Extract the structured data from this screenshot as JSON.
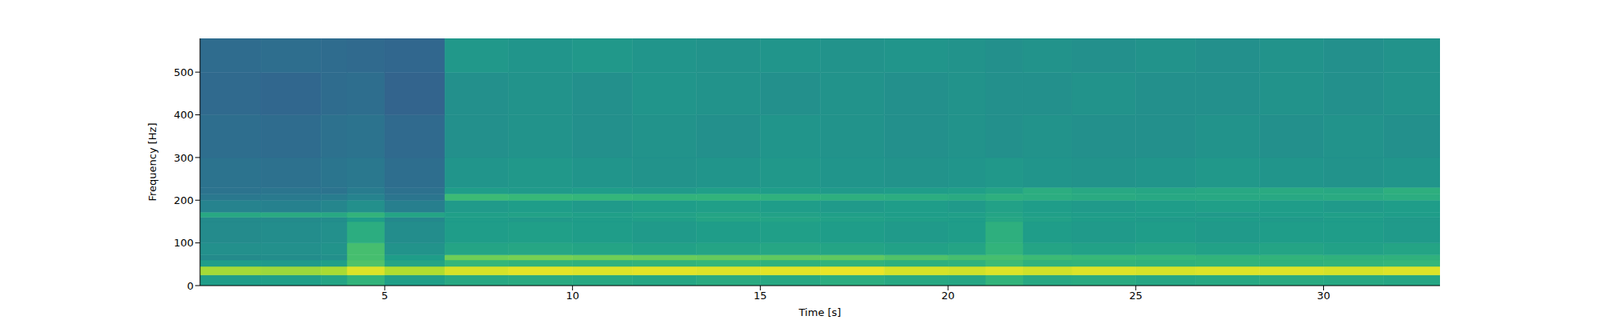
{
  "chart_data": {
    "type": "heatmap",
    "x_label": "Time [s]",
    "y_label": "Frequency [Hz]",
    "xlim": [
      0.08,
      33.1
    ],
    "ylim": [
      0,
      579
    ],
    "xticks": [
      5,
      10,
      15,
      20,
      25,
      30
    ],
    "yticks": [
      0,
      100,
      200,
      300,
      400,
      500
    ],
    "x_bins": [
      0.08,
      1.7,
      3.3,
      4.0,
      5.0,
      6.6,
      8.3,
      10,
      11.6,
      13.3,
      15,
      16.6,
      18.3,
      20,
      21,
      22,
      23.3,
      25,
      26.6,
      28.3,
      30,
      31.6,
      33.1
    ],
    "y_bins": [
      0,
      25,
      45,
      60,
      72,
      100,
      150,
      160,
      172,
      200,
      215,
      230,
      300,
      400,
      500,
      579
    ],
    "clim": [
      0,
      10
    ],
    "cells": [
      [
        5.5,
        5.6,
        5.8,
        6.5,
        5.6,
        6.0,
        6.1,
        6.0,
        5.9,
        6.1,
        6.0,
        6.2,
        6.0,
        5.9,
        6.5,
        6.0,
        6.1,
        5.9,
        6.0,
        6.1,
        6.0,
        5.9
      ],
      [
        8.6,
        8.5,
        8.7,
        9.5,
        8.8,
        9.4,
        9.6,
        9.5,
        9.6,
        9.5,
        9.6,
        9.7,
        9.4,
        9.3,
        9.5,
        9.3,
        9.5,
        9.4,
        9.5,
        9.5,
        9.4,
        9.5
      ],
      [
        5.5,
        5.4,
        5.6,
        7.2,
        5.8,
        6.6,
        6.5,
        6.4,
        6.5,
        6.6,
        6.4,
        6.5,
        6.3,
        6.4,
        6.8,
        6.4,
        6.5,
        6.4,
        6.5,
        6.4,
        6.5,
        6.6
      ],
      [
        4.8,
        4.9,
        5.0,
        7.0,
        5.5,
        7.8,
        7.9,
        7.8,
        7.7,
        7.6,
        7.5,
        7.5,
        7.2,
        7.0,
        7.0,
        6.8,
        6.7,
        6.6,
        6.5,
        6.5,
        6.4,
        6.4
      ],
      [
        5.0,
        5.0,
        5.1,
        7.0,
        5.1,
        5.8,
        5.9,
        5.8,
        5.7,
        5.8,
        5.9,
        5.8,
        5.7,
        5.8,
        6.5,
        5.8,
        5.7,
        5.8,
        5.7,
        5.8,
        5.7,
        5.8
      ],
      [
        4.8,
        4.9,
        5.0,
        6.2,
        4.9,
        5.5,
        5.6,
        5.5,
        5.4,
        5.5,
        5.6,
        5.5,
        5.4,
        5.5,
        6.3,
        5.5,
        5.4,
        5.5,
        5.4,
        5.5,
        5.5,
        5.4
      ],
      [
        4.8,
        4.8,
        4.9,
        5.5,
        4.7,
        5.5,
        5.4,
        5.5,
        5.6,
        5.8,
        5.8,
        5.7,
        5.6,
        5.5,
        5.9,
        5.7,
        5.5,
        5.4,
        5.5,
        5.4,
        5.5,
        5.4
      ],
      [
        6.0,
        6.1,
        6.0,
        6.5,
        5.8,
        5.6,
        5.7,
        5.6,
        5.7,
        5.8,
        5.7,
        5.6,
        5.5,
        5.6,
        5.8,
        5.6,
        5.5,
        5.5,
        5.4,
        5.5,
        5.6,
        5.5
      ],
      [
        4.5,
        4.4,
        4.6,
        5.0,
        4.3,
        5.4,
        5.5,
        5.4,
        5.5,
        5.6,
        5.5,
        5.4,
        5.5,
        5.4,
        5.7,
        5.5,
        5.4,
        5.5,
        5.6,
        5.5,
        5.4,
        5.5
      ],
      [
        4.0,
        4.1,
        4.2,
        4.5,
        3.9,
        6.8,
        6.7,
        6.6,
        6.5,
        6.5,
        6.4,
        6.3,
        6.2,
        6.1,
        6.3,
        6.2,
        6.1,
        6.0,
        6.0,
        6.0,
        6.1,
        6.2
      ],
      [
        3.8,
        3.9,
        3.8,
        4.2,
        3.7,
        5.5,
        5.4,
        5.5,
        5.4,
        5.6,
        5.5,
        5.4,
        5.5,
        5.6,
        5.8,
        6.2,
        6.0,
        5.9,
        6.0,
        6.1,
        6.0,
        6.3
      ],
      [
        3.8,
        3.7,
        3.9,
        4.0,
        3.6,
        5.2,
        5.3,
        5.2,
        5.1,
        5.2,
        5.3,
        5.2,
        5.1,
        5.2,
        5.3,
        5.2,
        5.1,
        5.2,
        5.3,
        5.2,
        5.1,
        5.2
      ],
      [
        3.6,
        3.5,
        3.7,
        3.8,
        3.4,
        5.0,
        5.1,
        5.0,
        5.1,
        5.0,
        5.2,
        5.1,
        5.0,
        5.1,
        5.0,
        5.1,
        5.0,
        5.0,
        5.1,
        5.0,
        5.1,
        5.0
      ],
      [
        3.4,
        3.3,
        3.5,
        3.6,
        3.2,
        5.0,
        5.1,
        5.0,
        5.2,
        5.1,
        5.0,
        5.1,
        5.0,
        5.1,
        5.0,
        5.0,
        5.1,
        5.0,
        5.0,
        5.1,
        5.0,
        5.1
      ],
      [
        3.5,
        3.6,
        3.5,
        3.4,
        3.3,
        5.3,
        5.2,
        5.3,
        5.2,
        5.1,
        5.2,
        5.1,
        5.2,
        5.1,
        5.0,
        5.1,
        5.0,
        5.1,
        5.0,
        5.1,
        5.0,
        5.1
      ]
    ]
  }
}
